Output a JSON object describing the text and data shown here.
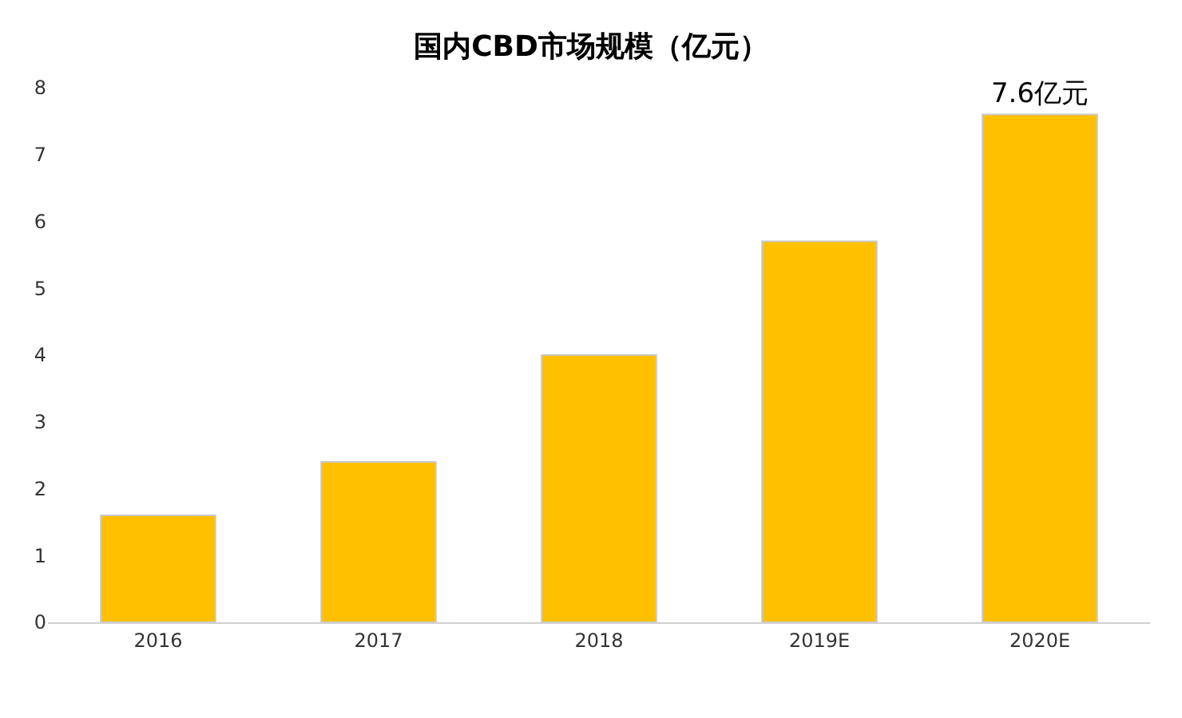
{
  "chart_data": {
    "type": "bar",
    "title": "国内CBD市场规模（亿元）",
    "categories": [
      "2016",
      "2017",
      "2018",
      "2019E",
      "2020E"
    ],
    "values": [
      1.6,
      2.4,
      4.0,
      5.7,
      7.6
    ],
    "value_labels": [
      null,
      null,
      null,
      null,
      "7.6亿元"
    ],
    "color": "#ffc000",
    "ylim": [
      0,
      8
    ],
    "yticks": [
      0,
      1,
      2,
      3,
      4,
      5,
      6,
      7,
      8
    ]
  }
}
